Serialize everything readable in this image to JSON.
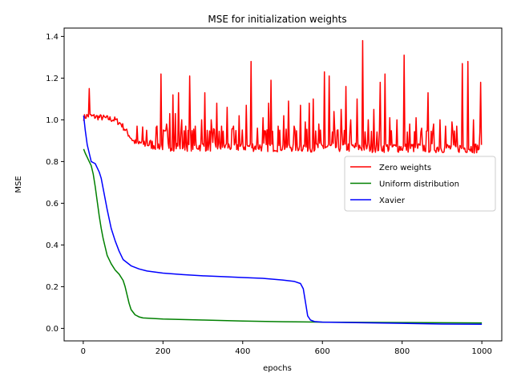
{
  "chart_data": {
    "type": "line",
    "title": "MSE for initialization weights",
    "xlabel": "epochs",
    "ylabel": "MSE",
    "xlim": [
      -48,
      1050
    ],
    "ylim": [
      -0.06,
      1.44
    ],
    "xticks": [
      0,
      200,
      400,
      600,
      800,
      1000
    ],
    "yticks": [
      0.0,
      0.2,
      0.4,
      0.6,
      0.8,
      1.0,
      1.2,
      1.4
    ],
    "legend": {
      "placement": "right",
      "entries": [
        "Zero weights",
        "Uniform distribution",
        "Xavier"
      ]
    },
    "series": [
      {
        "name": "Zero weights",
        "color": "#ff0000",
        "baseline": [
          [
            1,
            1.01
          ],
          [
            10,
            1.02
          ],
          [
            50,
            1.01
          ],
          [
            80,
            1.0
          ],
          [
            95,
            0.98
          ],
          [
            110,
            0.94
          ],
          [
            125,
            0.9
          ],
          [
            140,
            0.88
          ],
          [
            200,
            0.865
          ],
          [
            1000,
            0.855
          ]
        ],
        "spikes": [
          [
            15,
            1.15
          ],
          [
            135,
            0.97
          ],
          [
            160,
            0.95
          ],
          [
            185,
            0.97
          ],
          [
            195,
            1.22
          ],
          [
            210,
            0.98
          ],
          [
            218,
            1.03
          ],
          [
            225,
            1.12
          ],
          [
            232,
            1.03
          ],
          [
            240,
            1.13
          ],
          [
            248,
            1.0
          ],
          [
            258,
            0.97
          ],
          [
            268,
            1.21
          ],
          [
            282,
            0.97
          ],
          [
            298,
            1.0
          ],
          [
            305,
            1.13
          ],
          [
            322,
            1.0
          ],
          [
            335,
            1.08
          ],
          [
            348,
            0.97
          ],
          [
            362,
            1.06
          ],
          [
            378,
            0.97
          ],
          [
            392,
            1.02
          ],
          [
            410,
            1.07
          ],
          [
            422,
            1.28
          ],
          [
            438,
            0.96
          ],
          [
            452,
            1.01
          ],
          [
            465,
            1.08
          ],
          [
            472,
            1.19
          ],
          [
            490,
            0.97
          ],
          [
            503,
            1.02
          ],
          [
            515,
            1.09
          ],
          [
            530,
            0.97
          ],
          [
            545,
            1.07
          ],
          [
            558,
            0.99
          ],
          [
            568,
            1.08
          ],
          [
            578,
            1.1
          ],
          [
            592,
            0.98
          ],
          [
            606,
            1.23
          ],
          [
            618,
            1.21
          ],
          [
            630,
            1.04
          ],
          [
            648,
            1.05
          ],
          [
            660,
            1.16
          ],
          [
            672,
            1.0
          ],
          [
            688,
            1.1
          ],
          [
            702,
            1.38
          ],
          [
            716,
            1.0
          ],
          [
            730,
            1.05
          ],
          [
            745,
            1.18
          ],
          [
            758,
            1.22
          ],
          [
            770,
            1.01
          ],
          [
            788,
            1.0
          ],
          [
            806,
            1.31
          ],
          [
            820,
            0.98
          ],
          [
            836,
            1.01
          ],
          [
            850,
            0.96
          ],
          [
            866,
            1.13
          ],
          [
            880,
            0.98
          ],
          [
            895,
            1.0
          ],
          [
            910,
            0.97
          ],
          [
            925,
            0.99
          ],
          [
            938,
            0.97
          ],
          [
            952,
            1.27
          ],
          [
            966,
            1.28
          ],
          [
            980,
            1.0
          ],
          [
            997,
            1.18
          ]
        ]
      },
      {
        "name": "Uniform distribution",
        "color": "#008000",
        "points": [
          [
            1,
            0.86
          ],
          [
            5,
            0.84
          ],
          [
            10,
            0.82
          ],
          [
            15,
            0.8
          ],
          [
            20,
            0.78
          ],
          [
            25,
            0.74
          ],
          [
            30,
            0.68
          ],
          [
            35,
            0.61
          ],
          [
            40,
            0.54
          ],
          [
            45,
            0.48
          ],
          [
            50,
            0.43
          ],
          [
            55,
            0.39
          ],
          [
            60,
            0.35
          ],
          [
            70,
            0.31
          ],
          [
            80,
            0.28
          ],
          [
            90,
            0.26
          ],
          [
            100,
            0.23
          ],
          [
            105,
            0.2
          ],
          [
            110,
            0.16
          ],
          [
            115,
            0.12
          ],
          [
            120,
            0.09
          ],
          [
            130,
            0.065
          ],
          [
            140,
            0.055
          ],
          [
            150,
            0.05
          ],
          [
            200,
            0.045
          ],
          [
            300,
            0.04
          ],
          [
            400,
            0.035
          ],
          [
            500,
            0.032
          ],
          [
            600,
            0.03
          ],
          [
            700,
            0.029
          ],
          [
            800,
            0.028
          ],
          [
            900,
            0.027
          ],
          [
            1000,
            0.026
          ]
        ]
      },
      {
        "name": "Xavier",
        "color": "#0000ff",
        "points": [
          [
            1,
            1.02
          ],
          [
            5,
            0.95
          ],
          [
            10,
            0.88
          ],
          [
            15,
            0.84
          ],
          [
            20,
            0.8
          ],
          [
            30,
            0.79
          ],
          [
            35,
            0.77
          ],
          [
            40,
            0.75
          ],
          [
            45,
            0.72
          ],
          [
            50,
            0.67
          ],
          [
            60,
            0.57
          ],
          [
            70,
            0.48
          ],
          [
            80,
            0.42
          ],
          [
            90,
            0.37
          ],
          [
            100,
            0.33
          ],
          [
            120,
            0.3
          ],
          [
            140,
            0.285
          ],
          [
            160,
            0.275
          ],
          [
            200,
            0.265
          ],
          [
            250,
            0.258
          ],
          [
            300,
            0.252
          ],
          [
            350,
            0.248
          ],
          [
            400,
            0.244
          ],
          [
            450,
            0.24
          ],
          [
            500,
            0.232
          ],
          [
            530,
            0.225
          ],
          [
            545,
            0.215
          ],
          [
            552,
            0.19
          ],
          [
            558,
            0.12
          ],
          [
            563,
            0.06
          ],
          [
            570,
            0.04
          ],
          [
            580,
            0.033
          ],
          [
            600,
            0.03
          ],
          [
            700,
            0.027
          ],
          [
            800,
            0.024
          ],
          [
            900,
            0.021
          ],
          [
            1000,
            0.02
          ]
        ]
      }
    ]
  }
}
